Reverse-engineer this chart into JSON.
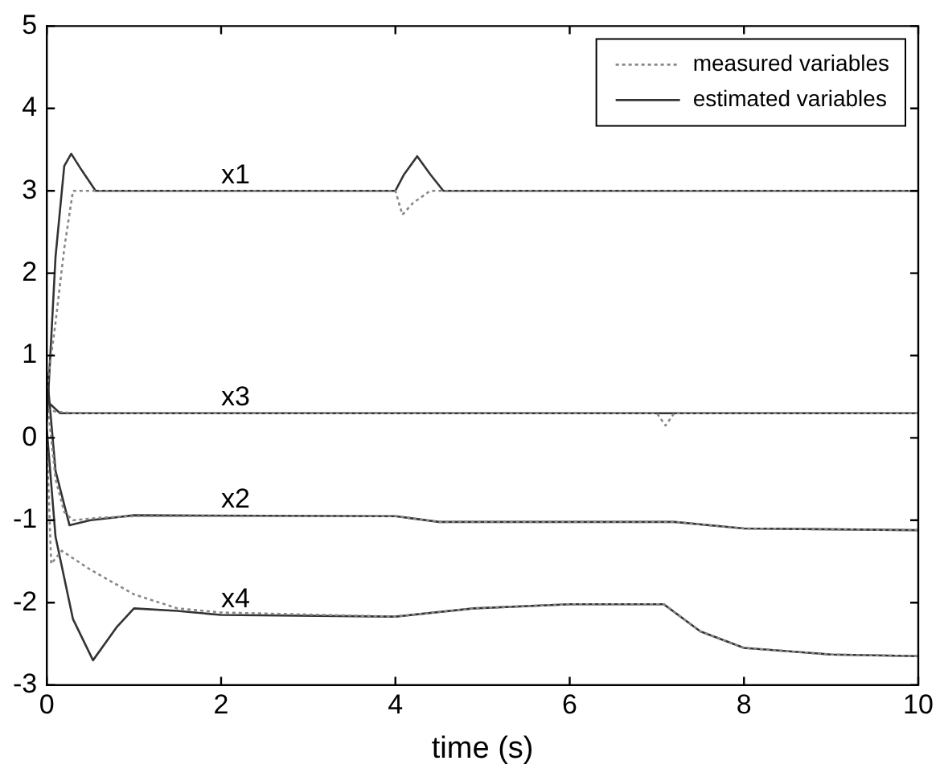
{
  "chart_data": {
    "type": "line",
    "xlabel": "time (s)",
    "xlim": [
      0,
      10
    ],
    "xticks": [
      0,
      2,
      4,
      6,
      8,
      10
    ],
    "ylim": [
      -3,
      5
    ],
    "yticks": [
      -3,
      -2,
      -1,
      0,
      1,
      2,
      3,
      4,
      5
    ],
    "grid": false,
    "legend": "top right",
    "marker": "none",
    "annotations": [
      "x1",
      "x3",
      "x2",
      "x4"
    ],
    "series": [
      {
        "name": "measured variables",
        "color": "#888888",
        "line_style": "dotted",
        "x": [
          0,
          0.1,
          0.2,
          0.3,
          4.0,
          4.08,
          4.2,
          4.4,
          10
        ],
        "values": [
          0.6,
          1.4,
          2.3,
          3,
          3,
          2.71,
          2.85,
          3,
          3
        ]
      },
      {
        "name": "estimated variables",
        "color": "#333333",
        "line_style": "solid",
        "x": [
          0,
          0.1,
          0.2,
          0.28,
          0.4,
          0.56,
          1,
          4.0,
          4.1,
          4.25,
          4.4,
          4.55,
          5,
          10
        ],
        "values": [
          0.2,
          2.2,
          3.3,
          3.45,
          3.25,
          3,
          3,
          3,
          3.2,
          3.42,
          3.2,
          3,
          3,
          3
        ]
      },
      {
        "color": "#888888",
        "line_style": "dotted",
        "x": [
          0,
          0.1,
          0.3,
          7.0,
          7.1,
          7.2,
          10
        ],
        "values": [
          0.35,
          0.32,
          0.3,
          0.3,
          0.15,
          0.3,
          0.3
        ]
      },
      {
        "color": "#333333",
        "line_style": "solid",
        "x": [
          0,
          0.05,
          0.15,
          0.3,
          10
        ],
        "values": [
          0.45,
          0.4,
          0.3,
          0.3,
          0.3
        ]
      },
      {
        "color": "#888888",
        "line_style": "dotted",
        "x": [
          0,
          0.1,
          0.2,
          0.3,
          0.6,
          1,
          4,
          4.5,
          7.2,
          8,
          10
        ],
        "values": [
          0.5,
          -0.5,
          -0.9,
          -1.0,
          -0.97,
          -0.95,
          -0.95,
          -1.02,
          -1.02,
          -1.1,
          -1.12
        ]
      },
      {
        "color": "#333333",
        "line_style": "solid",
        "x": [
          0,
          0.1,
          0.26,
          0.5,
          1,
          4,
          4.5,
          7.2,
          8,
          10
        ],
        "values": [
          0.8,
          -0.4,
          -1.06,
          -1.0,
          -0.94,
          -0.95,
          -1.02,
          -1.02,
          -1.1,
          -1.12
        ]
      },
      {
        "color": "#888888",
        "line_style": "dotted",
        "x": [
          0,
          0.05,
          0.17,
          0.5,
          1,
          1.5,
          2,
          4,
          4.9,
          6,
          7.08,
          7.5,
          8,
          9,
          10
        ],
        "values": [
          0.0,
          -1.53,
          -1.37,
          -1.6,
          -1.9,
          -2.07,
          -2.12,
          -2.17,
          -2.07,
          -2.02,
          -2.02,
          -2.35,
          -2.55,
          -2.63,
          -2.65
        ]
      },
      {
        "color": "#333333",
        "line_style": "solid",
        "x": [
          0,
          0.1,
          0.3,
          0.53,
          0.8,
          1.0,
          1.5,
          2,
          4,
          4.9,
          6,
          7.08,
          7.5,
          8,
          9,
          10
        ],
        "values": [
          0.1,
          -1.2,
          -2.2,
          -2.7,
          -2.3,
          -2.07,
          -2.1,
          -2.15,
          -2.17,
          -2.07,
          -2.02,
          -2.02,
          -2.35,
          -2.55,
          -2.63,
          -2.65
        ]
      }
    ]
  }
}
